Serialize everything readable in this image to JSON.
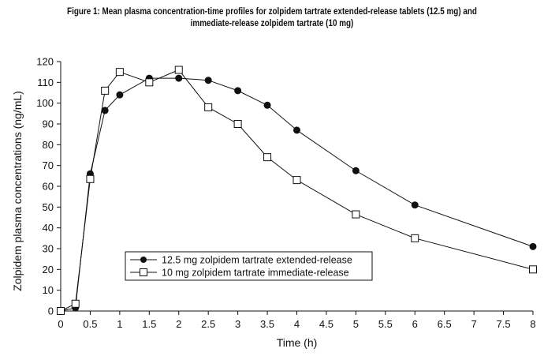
{
  "figure": {
    "title_line1": "Figure 1: Mean plasma concentration-time profiles for zolpidem tartrate extended-release tablets (12.5 mg) and",
    "title_line2": "immediate-release zolpidem tartrate (10 mg)"
  },
  "chart_data": {
    "type": "line",
    "title": "Figure 1: Mean plasma concentration-time profiles for zolpidem tartrate extended-release tablets (12.5 mg) and immediate-release zolpidem tartrate (10 mg)",
    "xlabel": "Time (h)",
    "ylabel": "Zolpidem plasma concentrations (ng/mL)",
    "xlim": [
      0,
      8
    ],
    "ylim": [
      0,
      120
    ],
    "xticks": [
      "0",
      "0.5",
      "1",
      "1.5",
      "2",
      "2.5",
      "3",
      "3.5",
      "4",
      "4.5",
      "5",
      "5.5",
      "6",
      "6.5",
      "7",
      "7.5",
      "8"
    ],
    "yticks": [
      "0",
      "10",
      "20",
      "30",
      "40",
      "50",
      "60",
      "70",
      "80",
      "90",
      "100",
      "110",
      "120"
    ],
    "grid": false,
    "legend_position": "lower-left",
    "series": [
      {
        "name": "12.5 mg zolpidem tartrate extended-release",
        "marker": "filled-circle",
        "color": "#111111",
        "points": [
          [
            0,
            0
          ],
          [
            0.25,
            1.5
          ],
          [
            0.5,
            66
          ],
          [
            0.75,
            96.5
          ],
          [
            1,
            104
          ],
          [
            1.5,
            112
          ],
          [
            2,
            112
          ],
          [
            2.5,
            111
          ],
          [
            3,
            106
          ],
          [
            3.5,
            99
          ],
          [
            4,
            87
          ],
          [
            5,
            67.5
          ],
          [
            6,
            51
          ],
          [
            8,
            31
          ]
        ]
      },
      {
        "name": "10 mg zolpidem tartrate immediate-release",
        "marker": "open-square",
        "color": "#111111",
        "points": [
          [
            0,
            0
          ],
          [
            0.25,
            3.5
          ],
          [
            0.5,
            63.5
          ],
          [
            0.75,
            106
          ],
          [
            1,
            115
          ],
          [
            1.5,
            110
          ],
          [
            2,
            116
          ],
          [
            2.5,
            98
          ],
          [
            3,
            90
          ],
          [
            3.5,
            74
          ],
          [
            4,
            63
          ],
          [
            5,
            46.5
          ],
          [
            6,
            35
          ],
          [
            8,
            20
          ]
        ]
      }
    ]
  }
}
